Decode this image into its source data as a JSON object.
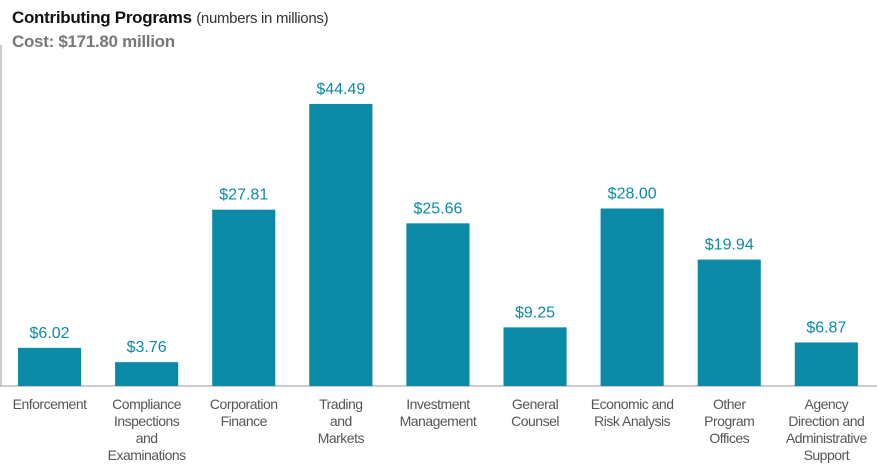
{
  "chart_data": {
    "type": "bar",
    "title": "Contributing Programs",
    "title_note": "(numbers in millions)",
    "subtitle": "Cost: $171.80 million",
    "categories": [
      "Enforcement",
      "Compliance\nInspections\nand\nExaminations",
      "Corporation\nFinance",
      "Trading\nand\nMarkets",
      "Investment\nManagement",
      "General\nCounsel",
      "Economic and\nRisk Analysis",
      "Other\nProgram\nOffices",
      "Agency\nDirection and\nAdministrative\nSupport"
    ],
    "values": [
      6.02,
      3.76,
      27.81,
      44.49,
      25.66,
      9.25,
      28.0,
      19.94,
      6.87
    ],
    "value_labels": [
      "$6.02",
      "$3.76",
      "$27.81",
      "$44.49",
      "$25.66",
      "$9.25",
      "$28.00",
      "$19.94",
      "$6.87"
    ],
    "color": "#0a8aa7",
    "ylim": [
      0,
      50
    ]
  }
}
